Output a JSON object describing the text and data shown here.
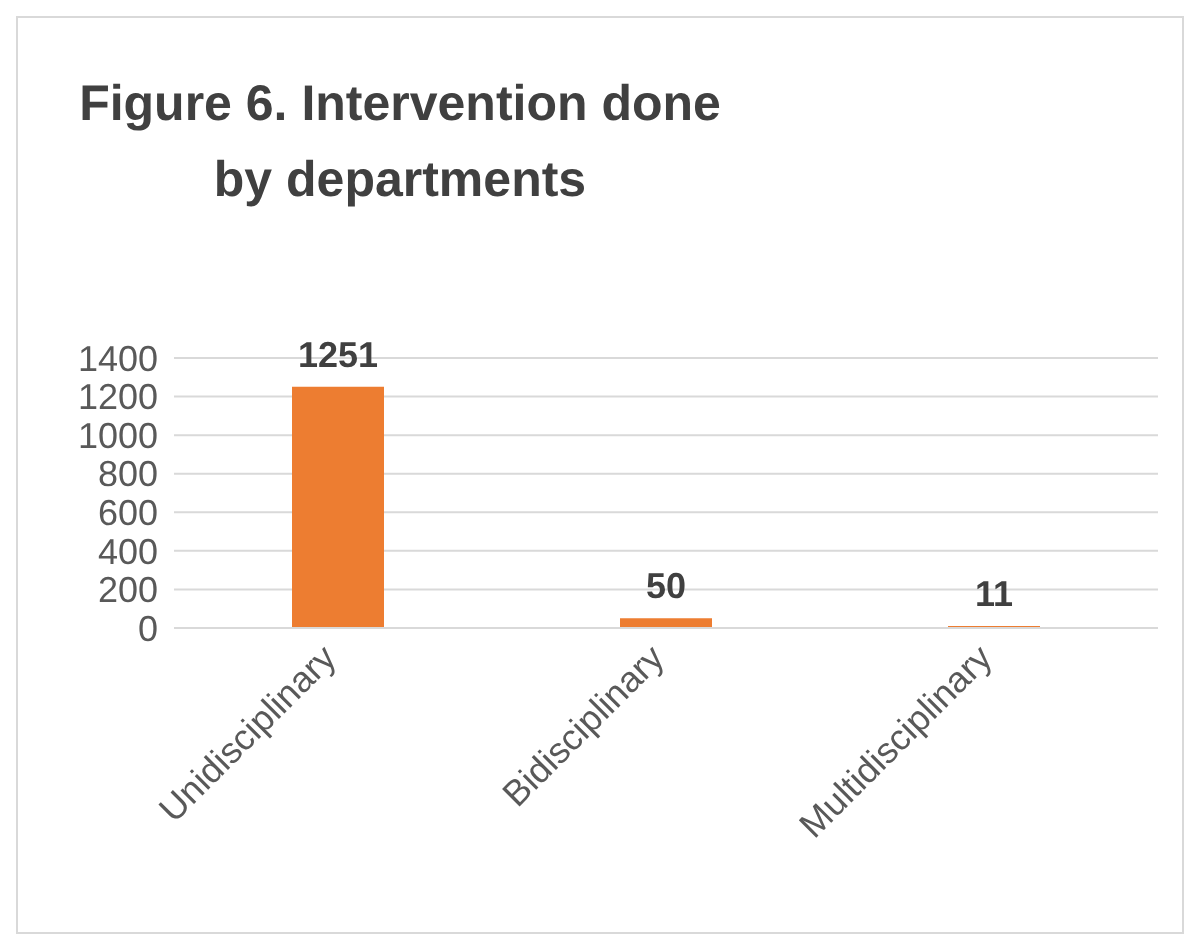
{
  "chart_data": {
    "type": "bar",
    "title": "Figure 6. Intervention done by departments",
    "categories": [
      "Unidisciplinary",
      "Bidisciplinary",
      "Multidisciplinary"
    ],
    "values": [
      1251,
      50,
      11
    ],
    "color": "#ed7d31",
    "ylim": [
      0,
      1400
    ],
    "yticks": [
      0,
      200,
      400,
      600,
      800,
      1000,
      1200,
      1400
    ],
    "grid": "y",
    "data_labels": true,
    "legend": false
  }
}
